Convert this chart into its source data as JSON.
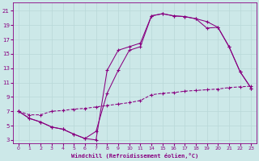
{
  "xlabel": "Windchill (Refroidissement éolien,°C)",
  "bg_color": "#cce8e8",
  "line_color": "#880080",
  "grid_color": "#b8d8d8",
  "xtick_labels": [
    "0",
    "1",
    "2",
    "3",
    "4",
    "5",
    "6",
    "7",
    "8",
    "9",
    "1011",
    "",
    "141516171819202122",
    "23"
  ],
  "yticks": [
    3,
    5,
    7,
    9,
    11,
    13,
    15,
    17,
    19,
    21
  ],
  "xlim": [
    -0.5,
    23.5
  ],
  "ylim": [
    2.5,
    22.2
  ],
  "curve1_x": [
    0,
    1,
    2,
    3,
    4,
    5,
    6,
    7,
    8,
    9,
    10,
    11,
    14,
    15,
    16,
    17,
    18,
    19,
    20,
    21,
    22,
    23
  ],
  "curve1_y": [
    7,
    6,
    5.5,
    4.8,
    4.5,
    3.8,
    3.2,
    3.0,
    12.7,
    15.5,
    16.0,
    16.5,
    20.3,
    20.6,
    20.3,
    20.2,
    19.9,
    18.6,
    18.7,
    16.0,
    12.5,
    10.2
  ],
  "curve2_x": [
    0,
    1,
    2,
    3,
    4,
    5,
    6,
    7,
    8,
    9,
    10,
    11,
    14,
    15,
    16,
    17,
    18,
    19,
    20,
    21,
    22,
    23
  ],
  "curve2_y": [
    7,
    6,
    5.5,
    4.8,
    4.5,
    3.8,
    3.2,
    4.2,
    9.5,
    12.7,
    15.5,
    16.0,
    20.3,
    20.6,
    20.3,
    20.2,
    19.9,
    19.5,
    18.7,
    16.0,
    12.5,
    10.2
  ],
  "curve3_x": [
    0,
    1,
    2,
    3,
    4,
    5,
    6,
    7,
    8,
    9,
    10,
    11,
    14,
    15,
    16,
    17,
    18,
    19,
    20,
    21,
    22,
    23
  ],
  "curve3_y": [
    7,
    6.5,
    6.5,
    7.0,
    7.1,
    7.3,
    7.4,
    7.6,
    7.8,
    8.0,
    8.2,
    8.5,
    9.3,
    9.5,
    9.6,
    9.8,
    9.9,
    10.0,
    10.1,
    10.3,
    10.4,
    10.5
  ]
}
